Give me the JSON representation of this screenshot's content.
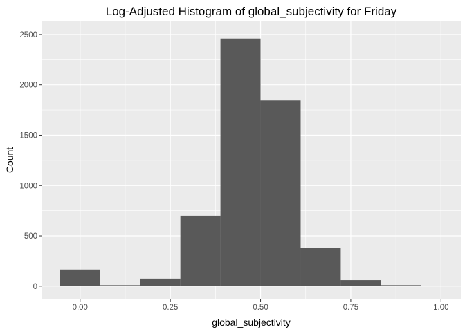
{
  "chart_data": {
    "type": "bar",
    "title": "Log-Adjusted Histogram of global_subjectivity for Friday",
    "xlabel": "global_subjectivity",
    "ylabel": "Count",
    "xlim": [
      -0.105,
      1.055
    ],
    "ylim": [
      -125,
      2630
    ],
    "x_ticks": [
      0.0,
      0.25,
      0.5,
      0.75,
      1.0
    ],
    "x_tick_labels": [
      "0.00",
      "0.25",
      "0.50",
      "0.75",
      "1.00"
    ],
    "y_ticks": [
      0,
      500,
      1000,
      1500,
      2000,
      2500
    ],
    "y_tick_labels": [
      "0",
      "500",
      "1000",
      "1500",
      "2000",
      "2500"
    ],
    "bin_edges": [
      -0.0556,
      0.0556,
      0.1667,
      0.2778,
      0.3889,
      0.5,
      0.6111,
      0.7222,
      0.8333,
      0.9444,
      1.0556
    ],
    "bins": [
      {
        "x0": -0.0556,
        "x1": 0.0556,
        "count": 165
      },
      {
        "x0": 0.0556,
        "x1": 0.1667,
        "count": 10
      },
      {
        "x0": 0.1667,
        "x1": 0.2778,
        "count": 75
      },
      {
        "x0": 0.2778,
        "x1": 0.3889,
        "count": 700
      },
      {
        "x0": 0.3889,
        "x1": 0.5,
        "count": 2460
      },
      {
        "x0": 0.5,
        "x1": 0.6111,
        "count": 1845
      },
      {
        "x0": 0.6111,
        "x1": 0.7222,
        "count": 380
      },
      {
        "x0": 0.7222,
        "x1": 0.8333,
        "count": 60
      },
      {
        "x0": 0.8333,
        "x1": 0.9444,
        "count": 10
      },
      {
        "x0": 0.9444,
        "x1": 1.0556,
        "count": 5
      }
    ],
    "grid": true,
    "colors": {
      "panel_background": "#ebebeb",
      "grid_major": "#ffffff",
      "bar_fill": "#595959",
      "tick_text": "#4d4d4d",
      "tick_mark": "#333333"
    }
  }
}
